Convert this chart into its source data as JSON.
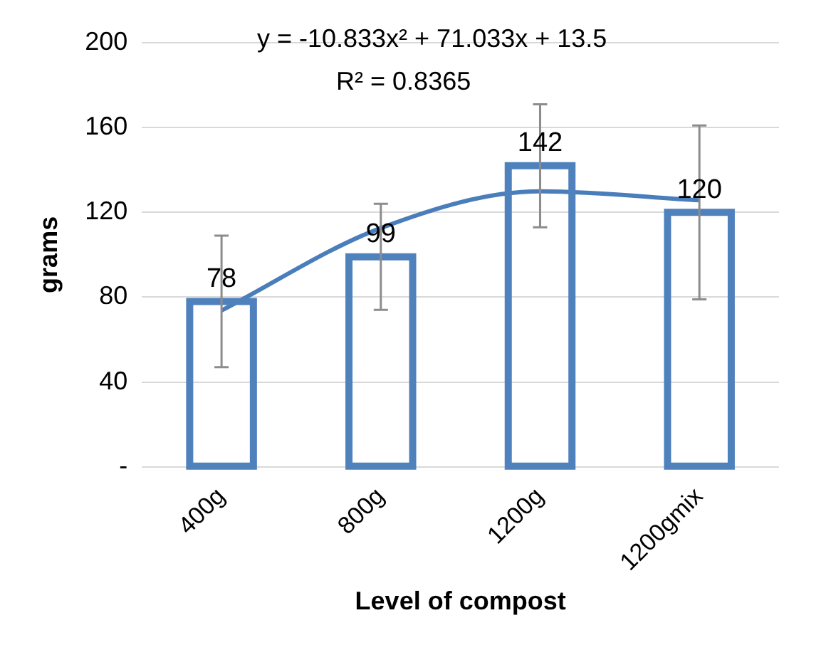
{
  "chart_data": {
    "type": "bar",
    "xlabel": "Level of compost",
    "ylabel": "grams",
    "categories": [
      "400g",
      "800g",
      "1200g",
      "1200gmix"
    ],
    "series": [
      {
        "color": "#4f81bd",
        "values": [
          78,
          99,
          142,
          120
        ],
        "value_labels": [
          "78",
          "99",
          "142",
          "120"
        ],
        "errors": [
          31,
          25,
          29,
          41
        ]
      },
      {
        "type": "line",
        "color": "#4a7ebb",
        "x": [
          "400g",
          "800g",
          "1200g",
          "1200gmix"
        ],
        "values": [
          73.7,
          112.6,
          129.9,
          125.7
        ]
      }
    ],
    "ylim": [
      0,
      200
    ],
    "yticks": [
      {
        "value": 0,
        "label": "-"
      },
      40,
      80,
      120,
      160,
      200
    ],
    "grid": "y",
    "annotations": [
      "y = -10.833x² + 71.033x + 13.5",
      "R² = 0.8365"
    ]
  }
}
